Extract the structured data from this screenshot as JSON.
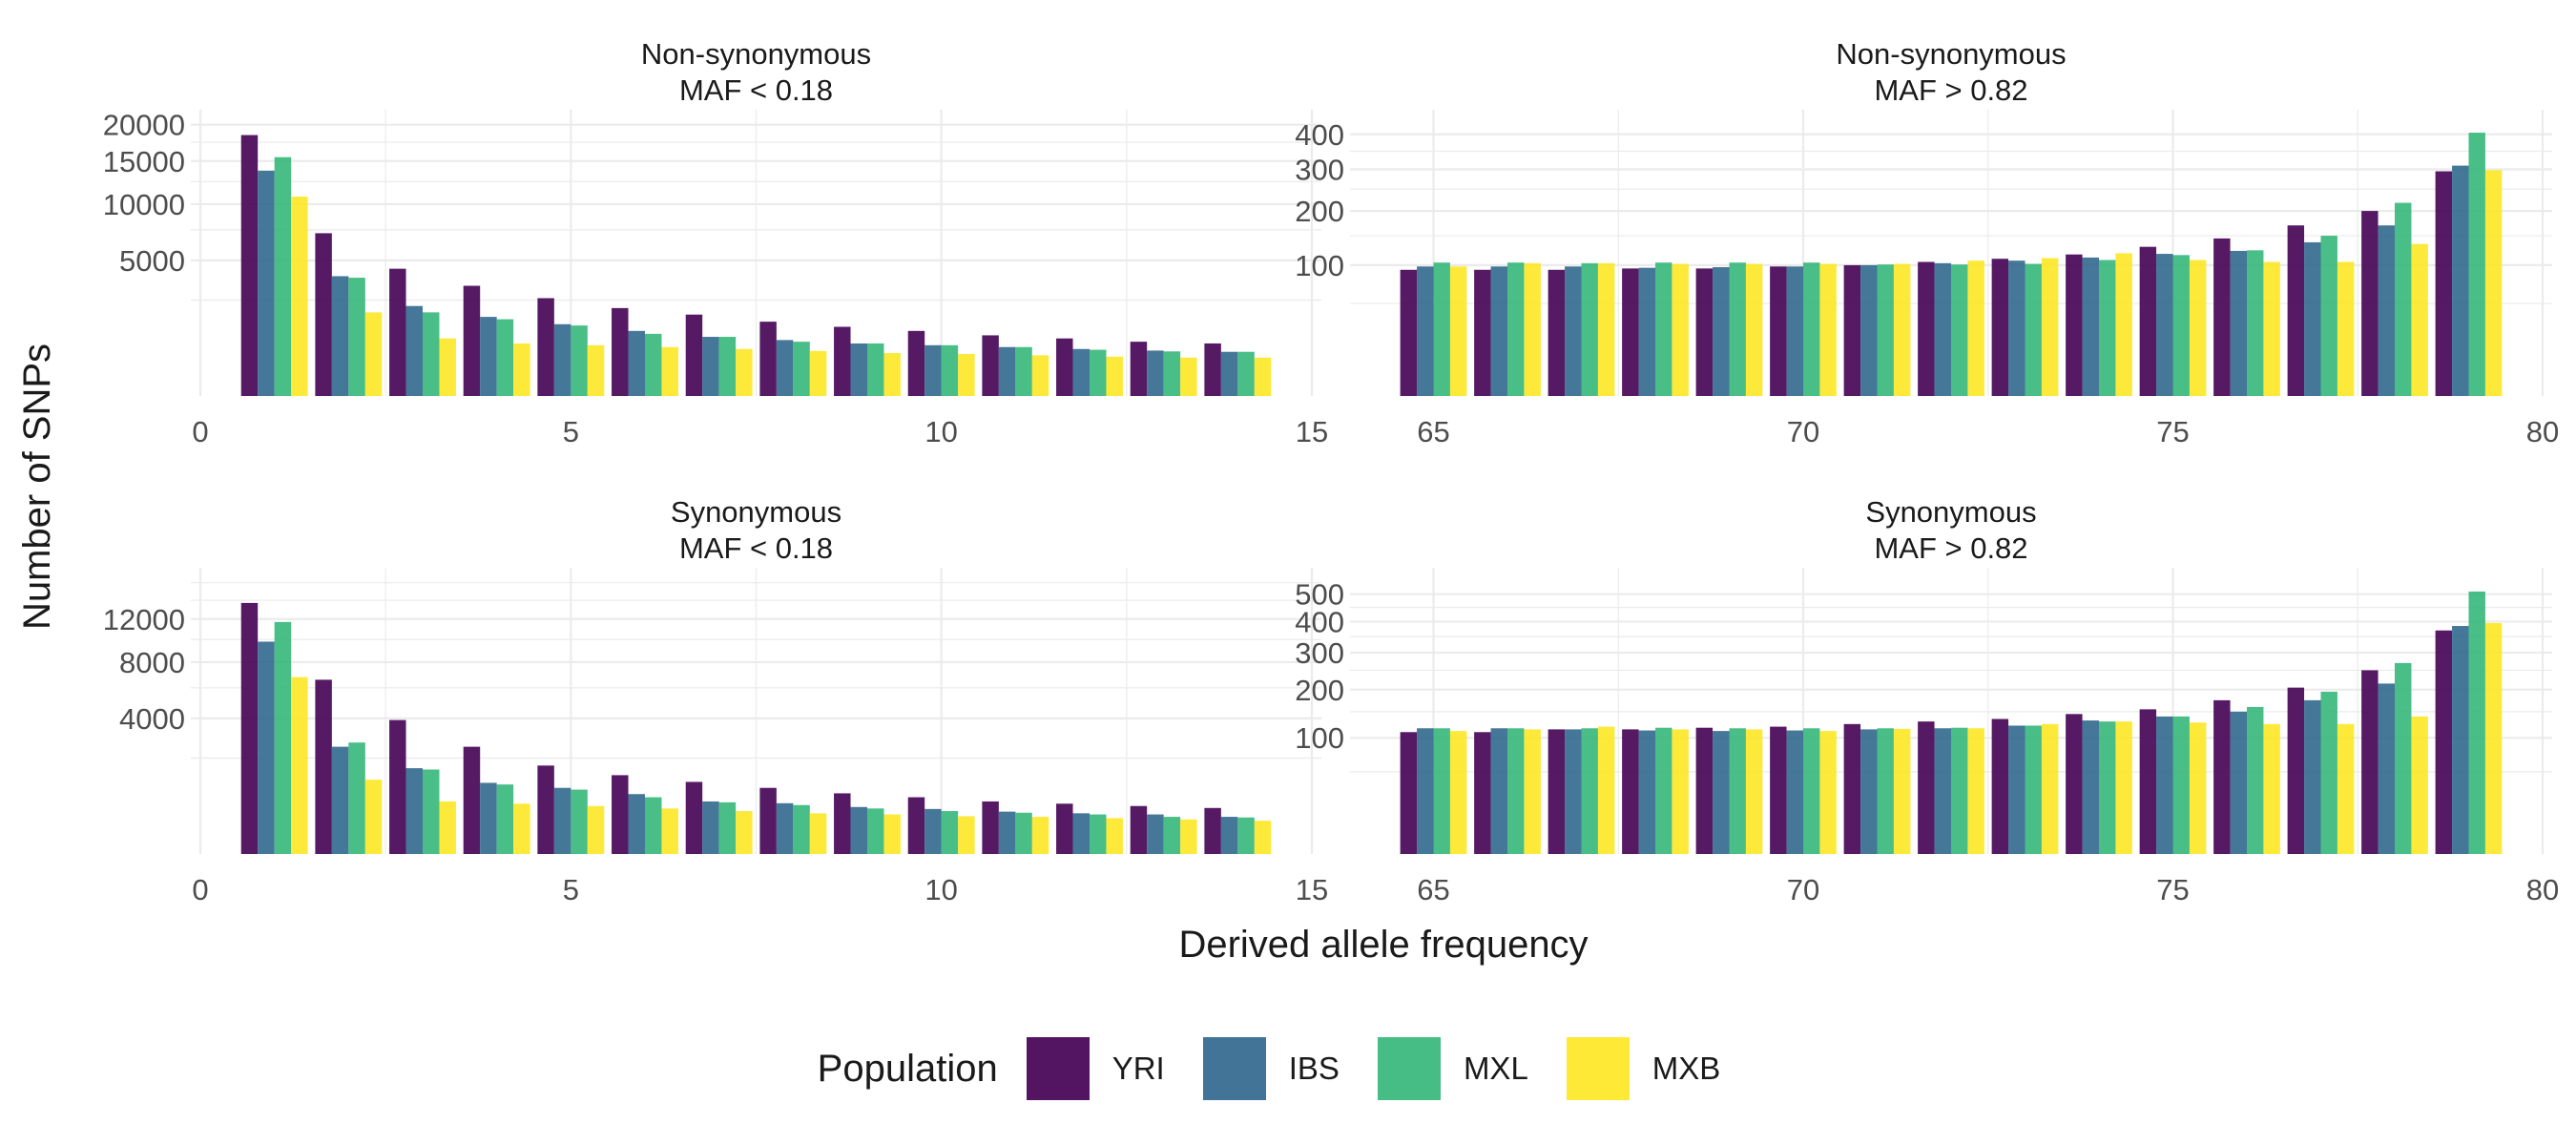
{
  "chart_data": {
    "type": "bar",
    "xlabel": "Derived allele frequency",
    "ylabel": "Number of SNPs",
    "legend": {
      "title": "Population",
      "position": "bottom",
      "entries": [
        "YRI",
        "IBS",
        "MXL",
        "MXB"
      ]
    },
    "colors": {
      "YRI": "#440154",
      "IBS": "#31688e",
      "MXL": "#35b779",
      "MXB": "#fde725"
    },
    "grid": true,
    "y_scale": "sqrt",
    "panels": [
      {
        "title_line1": "Non-synonymous",
        "title_line2": "MAF < 0.18",
        "x": [
          1,
          2,
          3,
          4,
          5,
          6,
          7,
          8,
          9,
          10,
          11,
          12,
          13,
          14
        ],
        "xlim": [
          0,
          15
        ],
        "x_ticks": [
          0,
          5,
          10,
          15
        ],
        "y_ticks": [
          5000,
          10000,
          15000,
          20000
        ],
        "y_tick_labels": [
          "5000",
          "10000",
          "15000",
          "20000"
        ],
        "y_max": 20000,
        "series": [
          {
            "name": "YRI",
            "values": [
              18500,
              7200,
              4400,
              3300,
              2600,
              2100,
              1800,
              1500,
              1300,
              1150,
              1000,
              900,
              800,
              750
            ]
          },
          {
            "name": "IBS",
            "values": [
              13800,
              3900,
              2200,
              1700,
              1400,
              1150,
              950,
              850,
              750,
              700,
              650,
              600,
              560,
              530
            ]
          },
          {
            "name": "MXL",
            "values": [
              15500,
              3800,
              1900,
              1600,
              1350,
              1050,
              950,
              800,
              750,
              700,
              650,
              580,
              540,
              530
            ]
          },
          {
            "name": "MXB",
            "values": [
              10800,
              1900,
              900,
              750,
              700,
              650,
              600,
              550,
              500,
              480,
              450,
              420,
              400,
              400
            ]
          }
        ]
      },
      {
        "title_line1": "Non-synonymous",
        "title_line2": "MAF > 0.82",
        "x": [
          65,
          66,
          67,
          68,
          69,
          70,
          71,
          72,
          73,
          74,
          75,
          76,
          77,
          78,
          79
        ],
        "xlim": [
          64,
          80
        ],
        "x_ticks": [
          65,
          70,
          75,
          80
        ],
        "y_ticks": [
          100,
          200,
          300,
          400
        ],
        "y_tick_labels": [
          "100",
          "200",
          "300",
          "400"
        ],
        "y_max": 430,
        "series": [
          {
            "name": "YRI",
            "values": [
              93,
              93,
              93,
              95,
              95,
              98,
              100,
              105,
              110,
              117,
              130,
              145,
              170,
              200,
              295
            ]
          },
          {
            "name": "IBS",
            "values": [
              98,
              98,
              98,
              96,
              97,
              98,
              100,
              103,
              107,
              112,
              118,
              123,
              138,
              170,
              310
            ]
          },
          {
            "name": "MXL",
            "values": [
              104,
              104,
              103,
              104,
              104,
              104,
              101,
              101,
              102,
              108,
              116,
              124,
              150,
              218,
              405
            ]
          },
          {
            "name": "MXB",
            "values": [
              98,
              103,
              103,
              102,
              102,
              102,
              102,
              107,
              111,
              119,
              108,
              105,
              105,
              135,
              298
            ]
          }
        ]
      },
      {
        "title_line1": "Synonymous",
        "title_line2": "MAF < 0.18",
        "x": [
          1,
          2,
          3,
          4,
          5,
          6,
          7,
          8,
          9,
          10,
          11,
          12,
          13,
          14
        ],
        "xlim": [
          0,
          15
        ],
        "x_ticks": [
          0,
          5,
          10,
          15
        ],
        "y_ticks": [
          4000,
          8000,
          12000
        ],
        "y_tick_labels": [
          "4000",
          "8000",
          "12000"
        ],
        "y_max": 16000,
        "series": [
          {
            "name": "YRI",
            "values": [
              13700,
              6600,
              3900,
              2500,
              1700,
              1350,
              1130,
              950,
              800,
              700,
              600,
              550,
              500,
              460
            ]
          },
          {
            "name": "IBS",
            "values": [
              9800,
              2500,
              1600,
              1100,
              950,
              780,
              600,
              560,
              480,
              440,
              390,
              360,
              340,
              300
            ]
          },
          {
            "name": "MXL",
            "values": [
              11700,
              2700,
              1550,
              1050,
              900,
              700,
              580,
              520,
              450,
              400,
              370,
              340,
              300,
              290
            ]
          },
          {
            "name": "MXB",
            "values": [
              6800,
              1200,
              600,
              550,
              500,
              450,
              400,
              360,
              340,
              310,
              300,
              280,
              260,
              240
            ]
          }
        ]
      },
      {
        "title_line1": "Synonymous",
        "title_line2": "MAF > 0.82",
        "x": [
          65,
          66,
          67,
          68,
          69,
          70,
          71,
          72,
          73,
          74,
          75,
          76,
          77,
          78,
          79
        ],
        "xlim": [
          64,
          80
        ],
        "x_ticks": [
          65,
          70,
          75,
          80
        ],
        "y_ticks": [
          100,
          200,
          300,
          400,
          500
        ],
        "y_tick_labels": [
          "100",
          "200",
          "300",
          "400",
          "500"
        ],
        "y_max": 545,
        "series": [
          {
            "name": "YRI",
            "values": [
              110,
              110,
              115,
              115,
              118,
              120,
              125,
              130,
              135,
              145,
              155,
              175,
              205,
              250,
              370
            ]
          },
          {
            "name": "IBS",
            "values": [
              117,
              117,
              115,
              113,
              112,
              113,
              115,
              117,
              122,
              132,
              140,
              150,
              175,
              215,
              385
            ]
          },
          {
            "name": "MXL",
            "values": [
              117,
              117,
              117,
              118,
              117,
              117,
              117,
              118,
              122,
              130,
              140,
              160,
              195,
              270,
              510
            ]
          },
          {
            "name": "MXB",
            "values": [
              112,
              115,
              120,
              115,
              115,
              112,
              116,
              117,
              125,
              130,
              128,
              125,
              125,
              140,
              395
            ]
          }
        ]
      }
    ]
  }
}
